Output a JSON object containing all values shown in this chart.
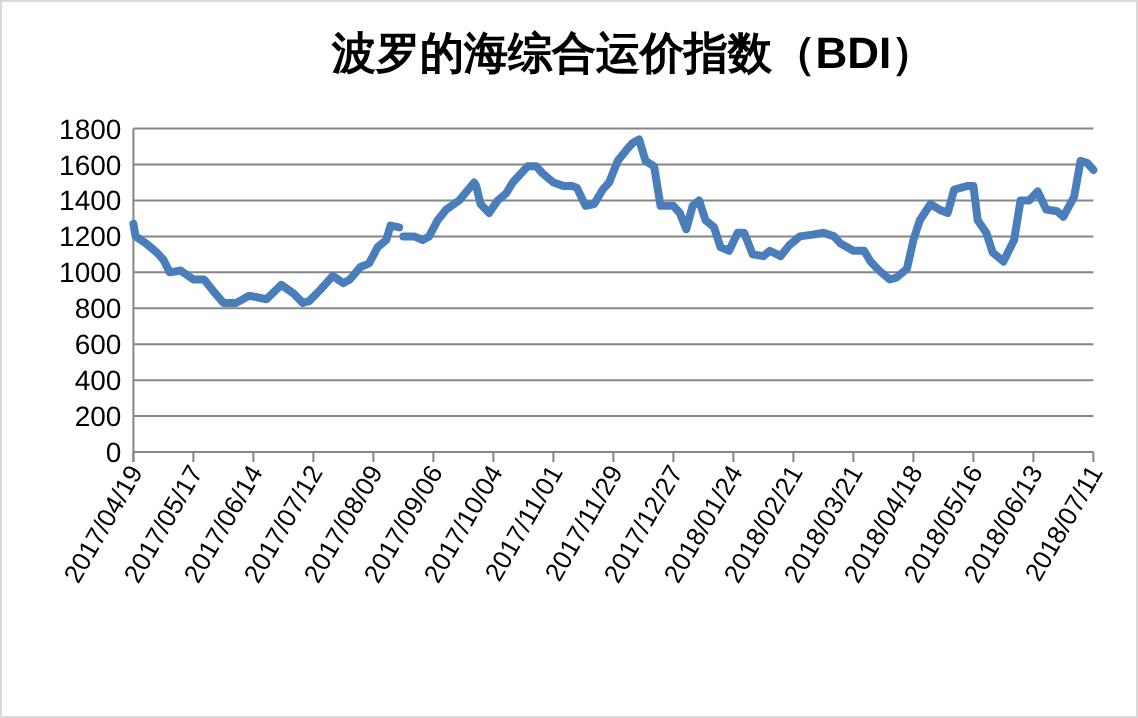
{
  "chart_data": {
    "type": "line",
    "title": "波罗的海综合运价指数（BDI）",
    "grid": "y",
    "marker": "none",
    "line_style": "solid",
    "ylim": [
      0,
      1800
    ],
    "yticks": [
      0,
      200,
      400,
      600,
      800,
      1000,
      1200,
      1400,
      1600,
      1800
    ],
    "xlim": [
      "2017-04-19",
      "2018-07-11"
    ],
    "xticks": [
      {
        "value": "2017-04-19",
        "label": "2017/04/19"
      },
      {
        "value": "2017-05-17",
        "label": "2017/05/17"
      },
      {
        "value": "2017-06-14",
        "label": "2017/06/14"
      },
      {
        "value": "2017-07-12",
        "label": "2017/07/12"
      },
      {
        "value": "2017-08-09",
        "label": "2017/08/09"
      },
      {
        "value": "2017-09-06",
        "label": "2017/09/06"
      },
      {
        "value": "2017-10-04",
        "label": "2017/10/04"
      },
      {
        "value": "2017-11-01",
        "label": "2017/11/01"
      },
      {
        "value": "2017-11-29",
        "label": "2017/11/29"
      },
      {
        "value": "2017-12-27",
        "label": "2017/12/27"
      },
      {
        "value": "2018-01-24",
        "label": "2018/01/24"
      },
      {
        "value": "2018-02-21",
        "label": "2018/02/21"
      },
      {
        "value": "2018-03-21",
        "label": "2018/03/21"
      },
      {
        "value": "2018-04-18",
        "label": "2018/04/18"
      },
      {
        "value": "2018-05-16",
        "label": "2018/05/16"
      },
      {
        "value": "2018-06-13",
        "label": "2018/06/13"
      },
      {
        "value": "2018-07-11",
        "label": "2018/07/11"
      }
    ],
    "x": [
      "2017-04-19",
      "2017-04-20",
      "2017-04-25",
      "2017-04-30",
      "2017-05-03",
      "2017-05-06",
      "2017-05-11",
      "2017-05-17",
      "2017-05-22",
      "2017-05-26",
      "2017-05-31",
      "2017-06-06",
      "2017-06-12",
      "2017-06-20",
      "2017-06-27",
      "2017-07-03",
      "2017-07-07",
      "2017-07-10",
      "2017-07-15",
      "2017-07-21",
      "2017-07-26",
      "2017-07-29",
      "2017-08-03",
      "2017-08-07",
      "2017-08-11",
      "2017-08-15",
      "2017-08-17",
      "2017-08-21",
      "2017-08-22",
      "2017-08-23",
      "2017-08-28",
      "2017-09-01",
      "2017-09-04",
      "2017-09-08",
      "2017-09-12",
      "2017-09-18",
      "2017-09-25",
      "2017-09-26",
      "2017-09-28",
      "2017-10-02",
      "2017-10-06",
      "2017-10-10",
      "2017-10-13",
      "2017-10-20",
      "2017-10-24",
      "2017-10-27",
      "2017-11-01",
      "2017-11-06",
      "2017-11-10",
      "2017-11-12",
      "2017-11-16",
      "2017-11-20",
      "2017-11-24",
      "2017-11-27",
      "2017-12-01",
      "2017-12-05",
      "2017-12-08",
      "2017-12-11",
      "2017-12-14",
      "2017-12-18",
      "2017-12-21",
      "2017-12-27",
      "2017-12-30",
      "2018-01-02",
      "2018-01-05",
      "2018-01-08",
      "2018-01-11",
      "2018-01-15",
      "2018-01-18",
      "2018-01-22",
      "2018-01-26",
      "2018-01-29",
      "2018-02-02",
      "2018-02-07",
      "2018-02-10",
      "2018-02-15",
      "2018-02-19",
      "2018-02-24",
      "2018-03-02",
      "2018-03-07",
      "2018-03-12",
      "2018-03-15",
      "2018-03-21",
      "2018-03-26",
      "2018-03-29",
      "2018-04-02",
      "2018-04-07",
      "2018-04-10",
      "2018-04-15",
      "2018-04-18",
      "2018-04-21",
      "2018-04-26",
      "2018-04-30",
      "2018-05-04",
      "2018-05-07",
      "2018-05-13",
      "2018-05-16",
      "2018-05-18",
      "2018-05-22",
      "2018-05-25",
      "2018-05-30",
      "2018-06-04",
      "2018-06-07",
      "2018-06-11",
      "2018-06-15",
      "2018-06-19",
      "2018-06-24",
      "2018-06-27",
      "2018-07-02",
      "2018-07-05",
      "2018-07-08",
      "2018-07-11"
    ],
    "series": [
      {
        "color": "#4a7ebb",
        "values": [
          1270,
          1200,
          1160,
          1110,
          1070,
          1000,
          1010,
          960,
          960,
          900,
          830,
          830,
          870,
          850,
          930,
          880,
          830,
          840,
          900,
          980,
          940,
          960,
          1030,
          1050,
          1140,
          1180,
          1260,
          1250,
          null,
          1200,
          1200,
          1180,
          1200,
          1290,
          1350,
          1400,
          1500,
          1480,
          1380,
          1330,
          1400,
          1440,
          1500,
          1590,
          1590,
          1550,
          1500,
          1480,
          1480,
          1470,
          1370,
          1380,
          1460,
          1500,
          1620,
          1680,
          1720,
          1740,
          1620,
          1590,
          1370,
          1370,
          1330,
          1240,
          1370,
          1400,
          1290,
          1250,
          1140,
          1120,
          1220,
          1220,
          1100,
          1090,
          1120,
          1090,
          1150,
          1200,
          1210,
          1220,
          1200,
          1160,
          1120,
          1120,
          1060,
          1010,
          960,
          970,
          1020,
          1180,
          1290,
          1380,
          1350,
          1330,
          1460,
          1480,
          1480,
          1290,
          1220,
          1110,
          1060,
          1180,
          1400,
          1400,
          1450,
          1350,
          1340,
          1310,
          1420,
          1620,
          1610,
          1570
        ]
      }
    ]
  }
}
